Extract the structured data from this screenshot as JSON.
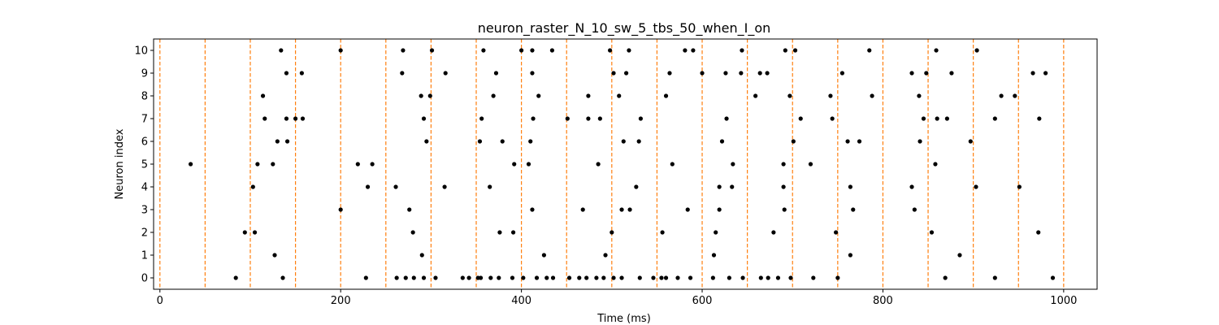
{
  "chart_data": {
    "type": "scatter",
    "title": "neuron_raster_N_10_sw_5_tbs_50_when_I_on",
    "xlabel": "Time (ms)",
    "ylabel": "Neuron index",
    "xlim": [
      -7,
      1037
    ],
    "ylim": [
      -0.5,
      10.5
    ],
    "x_ticks": [
      0,
      200,
      400,
      600,
      800,
      1000
    ],
    "y_ticks": [
      0,
      1,
      2,
      3,
      4,
      5,
      6,
      7,
      8,
      9,
      10
    ],
    "grid": false,
    "marker_color": "#000000",
    "vline_color": "#ff7f0e",
    "vline_style": "dashed",
    "vlines_x": [
      0,
      50,
      100,
      150,
      200,
      250,
      300,
      350,
      400,
      450,
      500,
      550,
      600,
      650,
      700,
      750,
      800,
      850,
      900,
      950,
      1000
    ],
    "spikes": [
      {
        "neuron": 0,
        "times": [
          84,
          136,
          228,
          262,
          272,
          281,
          292,
          305,
          335,
          342,
          352,
          355,
          366,
          375,
          390,
          402,
          417,
          428,
          435,
          453,
          464,
          472,
          483,
          491,
          502,
          511,
          531,
          546,
          555,
          560,
          573,
          587,
          612,
          630,
          645,
          665,
          673,
          684,
          698,
          723,
          750,
          869,
          924,
          988
        ]
      },
      {
        "neuron": 1,
        "times": [
          127,
          290,
          425,
          493,
          613,
          764,
          885
        ]
      },
      {
        "neuron": 2,
        "times": [
          94,
          105,
          280,
          376,
          391,
          500,
          556,
          615,
          679,
          748,
          854,
          972
        ]
      },
      {
        "neuron": 3,
        "times": [
          200,
          276,
          412,
          468,
          511,
          520,
          584,
          619,
          691,
          767,
          835
        ]
      },
      {
        "neuron": 4,
        "times": [
          103,
          230,
          261,
          315,
          365,
          527,
          619,
          633,
          690,
          764,
          832,
          903,
          951
        ]
      },
      {
        "neuron": 5,
        "times": [
          34,
          108,
          125,
          219,
          235,
          392,
          408,
          485,
          567,
          634,
          690,
          720,
          858
        ]
      },
      {
        "neuron": 6,
        "times": [
          130,
          141,
          295,
          354,
          379,
          410,
          513,
          530,
          622,
          701,
          761,
          774,
          841,
          897
        ]
      },
      {
        "neuron": 7,
        "times": [
          116,
          140,
          150,
          158,
          292,
          356,
          413,
          451,
          474,
          487,
          532,
          627,
          709,
          744,
          845,
          860,
          871,
          924,
          973
        ]
      },
      {
        "neuron": 8,
        "times": [
          114,
          289,
          299,
          369,
          419,
          474,
          508,
          560,
          659,
          697,
          742,
          788,
          840,
          931,
          946
        ]
      },
      {
        "neuron": 9,
        "times": [
          140,
          157,
          268,
          316,
          372,
          412,
          502,
          516,
          564,
          600,
          626,
          643,
          664,
          672,
          755,
          832,
          848,
          876,
          966,
          980
        ]
      },
      {
        "neuron": 10,
        "times": [
          134,
          200,
          269,
          301,
          358,
          400,
          412,
          434,
          498,
          519,
          581,
          590,
          644,
          692,
          703,
          785,
          859,
          904
        ]
      }
    ]
  }
}
